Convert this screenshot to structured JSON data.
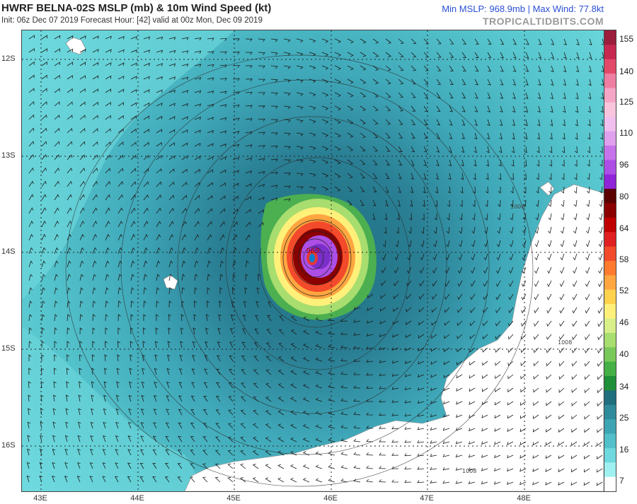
{
  "header": {
    "title": "HWRF BELNA-02S MSLP (mb) & 10m Wind Speed (kt)",
    "subtitle": "Init: 06z Dec 07 2019   Forecast Hour: [42]   valid at 00z Mon, Dec 09 2019",
    "stats": "Min MSLP: 968.9mb | Max Wind: 77.8kt",
    "brand": "TROPICALTIDBITS.COM"
  },
  "map": {
    "latitude_labels": [
      "12S",
      "13S",
      "14S",
      "15S",
      "16S"
    ],
    "longitude_labels": [
      "43E",
      "44E",
      "45E",
      "46E",
      "47E",
      "48E"
    ],
    "storm_center_label": "969",
    "pressure_contour_labels": [
      "1008",
      "1008",
      "1008"
    ],
    "colors": {
      "ocean_light": "#62cfd6",
      "ocean_mid": "#3fa8b9",
      "ocean_dark": "#2a7f94",
      "land": "#ffffff",
      "tropical_storm": "#4caf50",
      "storm_core": "#e53935",
      "eye": "#9c27b0"
    }
  },
  "colorbar": {
    "labels": [
      "155",
      "140",
      "125",
      "110",
      "96",
      "80",
      "64",
      "58",
      "52",
      "46",
      "40",
      "34",
      "25",
      "16",
      "7"
    ],
    "colors": [
      "#9c1c3c",
      "#c62850",
      "#e34a6a",
      "#ef7fa2",
      "#f5a6c6",
      "#f8c5dc",
      "#f2c0ef",
      "#dfa0ee",
      "#c774ec",
      "#ad4fe6",
      "#8f24d9",
      "#5a0000",
      "#8b0000",
      "#c00000",
      "#e02020",
      "#f24a2a",
      "#ff7a2e",
      "#ffa640",
      "#ffd24d",
      "#fff07a",
      "#d8ef8a",
      "#a8dd6f",
      "#78c95a",
      "#45b045",
      "#1f8f39",
      "#1f6f7f",
      "#2f8a9a",
      "#3fa5b3",
      "#52bfc9",
      "#6fd8de",
      "#9ff0f0",
      "#ffffff"
    ]
  }
}
